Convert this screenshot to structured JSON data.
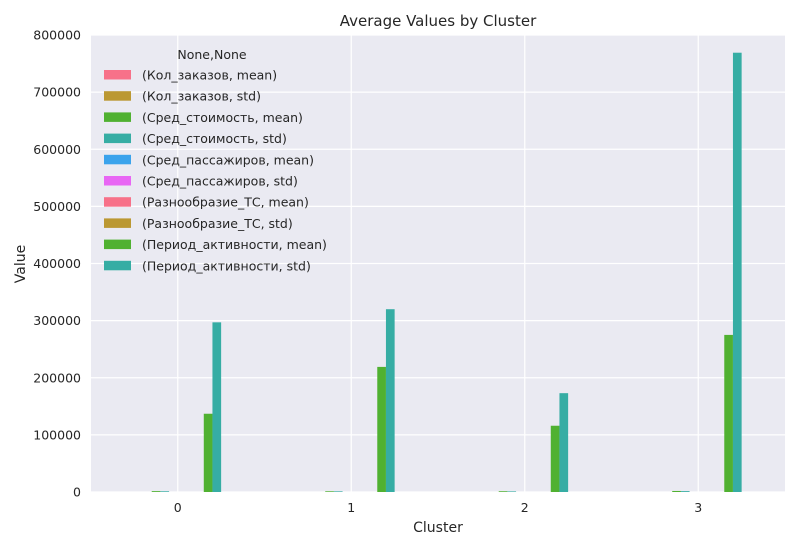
{
  "chart_data": {
    "type": "bar",
    "title": "Average Values by Cluster",
    "xlabel": "Cluster",
    "ylabel": "Value",
    "categories": [
      "0",
      "1",
      "2",
      "3"
    ],
    "ylim": [
      0,
      800000
    ],
    "yticks": [
      0,
      100000,
      200000,
      300000,
      400000,
      500000,
      600000,
      700000,
      800000
    ],
    "grid": true,
    "legend_title": "None,None",
    "legend_position": "upper-left",
    "series": [
      {
        "name": "(Кол_заказов, mean)",
        "color": "#f77189",
        "values": [
          3,
          2,
          3,
          4
        ]
      },
      {
        "name": "(Кол_заказов, std)",
        "color": "#bb9832",
        "values": [
          3,
          2,
          3,
          4
        ]
      },
      {
        "name": "(Сред_стоимость, mean)",
        "color": "#50b131",
        "values": [
          1500,
          1200,
          1300,
          1800
        ]
      },
      {
        "name": "(Сред_стоимость, std)",
        "color": "#36ada4",
        "values": [
          1200,
          1100,
          1000,
          1500
        ]
      },
      {
        "name": "(Сред_пассажиров, mean)",
        "color": "#3ba3ec",
        "values": [
          2,
          2,
          2,
          2
        ]
      },
      {
        "name": "(Сред_пассажиров, std)",
        "color": "#e866f4",
        "values": [
          1,
          1,
          1,
          1
        ]
      },
      {
        "name": "(Разнообразие_ТС, mean)",
        "color": "#f77189",
        "values": [
          2,
          2,
          2,
          2
        ]
      },
      {
        "name": "(Разнообразие_ТС, std)",
        "color": "#bb9832",
        "values": [
          1,
          1,
          1,
          1
        ]
      },
      {
        "name": "(Период_активности, mean)",
        "color": "#50b131",
        "values": [
          137000,
          219000,
          116000,
          275000
        ]
      },
      {
        "name": "(Период_активности, std)",
        "color": "#36ada4",
        "values": [
          297000,
          320000,
          173000,
          769000
        ]
      }
    ]
  }
}
